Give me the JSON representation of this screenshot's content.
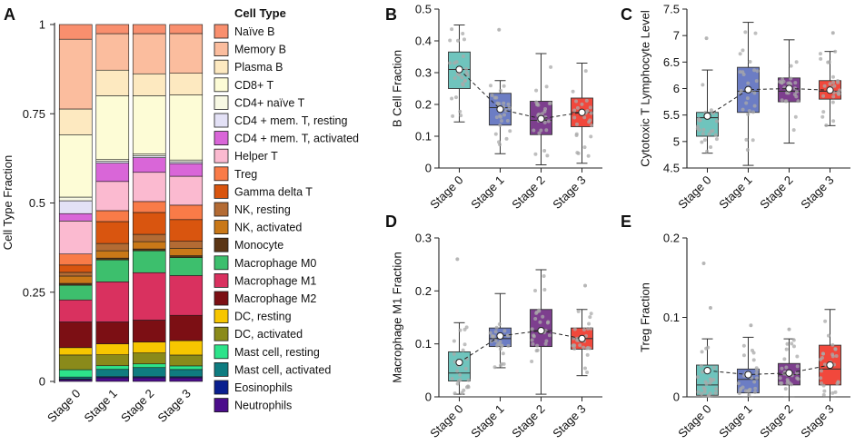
{
  "figure": {
    "panels": [
      "A",
      "B",
      "C",
      "D",
      "E"
    ]
  },
  "chart_data": [
    {
      "type": "stacked-bar",
      "panel": "A",
      "ylabel": "Cell Type Fraction",
      "ylim": [
        0,
        1
      ],
      "yticks": [
        0,
        0.25,
        0.5,
        0.75,
        1
      ],
      "ytick_labels": [
        "0",
        "0.25",
        "0.5",
        "0.75",
        "1"
      ],
      "categories": [
        "Stage 0",
        "Stage 1",
        "Stage 2",
        "Stage 3"
      ],
      "legend_title": "Cell Type",
      "series": [
        {
          "name": "Neutrophils",
          "color": "#4b0d8b",
          "values": [
            0.005,
            0.01,
            0.01,
            0.01
          ]
        },
        {
          "name": "Eosinophils",
          "color": "#0a1f8f",
          "values": [
            0.002,
            0.003,
            0.003,
            0.003
          ]
        },
        {
          "name": "Mast cell, activated",
          "color": "#0f7c80",
          "values": [
            0.005,
            0.02,
            0.025,
            0.02
          ]
        },
        {
          "name": "Mast cell, resting",
          "color": "#2de38a",
          "values": [
            0.02,
            0.01,
            0.01,
            0.01
          ]
        },
        {
          "name": "DC, activated",
          "color": "#8a8a1a",
          "values": [
            0.04,
            0.03,
            0.03,
            0.03
          ]
        },
        {
          "name": "DC, resting",
          "color": "#f7c600",
          "values": [
            0.02,
            0.03,
            0.03,
            0.04
          ]
        },
        {
          "name": "Macrophage M2",
          "color": "#7c0f14",
          "values": [
            0.07,
            0.06,
            0.06,
            0.07
          ]
        },
        {
          "name": "Macrophage M1",
          "color": "#d9315f",
          "values": [
            0.06,
            0.11,
            0.13,
            0.11
          ]
        },
        {
          "name": "Macrophage M0",
          "color": "#3dbf6d",
          "values": [
            0.04,
            0.06,
            0.06,
            0.05
          ]
        },
        {
          "name": "Monocyte",
          "color": "#5a3515",
          "values": [
            0.005,
            0.005,
            0.005,
            0.005
          ]
        },
        {
          "name": "NK, activated",
          "color": "#c97818",
          "values": [
            0.02,
            0.02,
            0.02,
            0.02
          ]
        },
        {
          "name": "NK, resting",
          "color": "#b36b34",
          "values": [
            0.01,
            0.02,
            0.02,
            0.02
          ]
        },
        {
          "name": "Gamma delta T",
          "color": "#d9550f",
          "values": [
            0.02,
            0.06,
            0.06,
            0.06
          ]
        },
        {
          "name": "Treg",
          "color": "#f97b48",
          "values": [
            0.03,
            0.03,
            0.03,
            0.04
          ]
        },
        {
          "name": "Helper T",
          "color": "#fbbad0",
          "values": [
            0.09,
            0.08,
            0.08,
            0.08
          ]
        },
        {
          "name": "CD4 + mem. T, activated",
          "color": "#d966d8",
          "values": [
            0.02,
            0.05,
            0.04,
            0.035
          ]
        },
        {
          "name": "CD4 + mem. T, resting",
          "color": "#e3e1f6",
          "values": [
            0.035,
            0.005,
            0.005,
            0.005
          ]
        },
        {
          "name": "CD4+ naïve T",
          "color": "#f8f9e4",
          "values": [
            0.01,
            0.005,
            0.005,
            0.005
          ]
        },
        {
          "name": "CD8+ T",
          "color": "#fdfcd6",
          "values": [
            0.17,
            0.175,
            0.16,
            0.18
          ]
        },
        {
          "name": "Plasma B",
          "color": "#fde9c0",
          "values": [
            0.07,
            0.07,
            0.06,
            0.06
          ]
        },
        {
          "name": "Memory B",
          "color": "#fbbd9e",
          "values": [
            0.19,
            0.1,
            0.11,
            0.11
          ]
        },
        {
          "name": "Naïve B",
          "color": "#f98f6e",
          "values": [
            0.04,
            0.025,
            0.025,
            0.025
          ]
        }
      ]
    },
    {
      "type": "box",
      "panel": "B",
      "ylabel": "B Cell Fraction",
      "ylim": [
        0,
        0.5
      ],
      "yticks": [
        0,
        0.1,
        0.2,
        0.3,
        0.4,
        0.5
      ],
      "ytick_labels": [
        "0",
        "0.1",
        "0.2",
        "0.3",
        "0.4",
        "0.5"
      ],
      "categories": [
        "Stage 0",
        "Stage 1",
        "Stage 2",
        "Stage 3"
      ],
      "colors": [
        "#6fc4bd",
        "#6c7dc4",
        "#7d3f8e",
        "#f1483c"
      ],
      "boxes": [
        {
          "q1": 0.25,
          "median": 0.31,
          "q3": 0.365,
          "whisker_low": 0.145,
          "whisker_high": 0.45,
          "mean": 0.31
        },
        {
          "q1": 0.135,
          "median": 0.19,
          "q3": 0.235,
          "whisker_low": 0.045,
          "whisker_high": 0.275,
          "mean": 0.185
        },
        {
          "q1": 0.105,
          "median": 0.15,
          "q3": 0.21,
          "whisker_low": 0.01,
          "whisker_high": 0.36,
          "mean": 0.155
        },
        {
          "q1": 0.13,
          "median": 0.175,
          "q3": 0.22,
          "whisker_low": 0.015,
          "whisker_high": 0.33,
          "mean": 0.175
        }
      ],
      "outliers": [
        [],
        [
          0.435
        ],
        [],
        []
      ]
    },
    {
      "type": "box",
      "panel": "C",
      "ylabel": "Cytotoxic T Lymphocyte Level",
      "ylim": [
        4.5,
        7.5
      ],
      "yticks": [
        4.5,
        5,
        5.5,
        6,
        6.5,
        7,
        7.5
      ],
      "ytick_labels": [
        "4.5",
        "5",
        "5.5",
        "6",
        "6.5",
        "7",
        "7.5"
      ],
      "categories": [
        "Stage 0",
        "Stage 1",
        "Stage 2",
        "Stage 3"
      ],
      "colors": [
        "#6fc4bd",
        "#6c7dc4",
        "#7d3f8e",
        "#f1483c"
      ],
      "boxes": [
        {
          "q1": 5.1,
          "median": 5.45,
          "q3": 5.55,
          "whisker_low": 4.78,
          "whisker_high": 6.35,
          "mean": 5.48
        },
        {
          "q1": 5.55,
          "median": 5.95,
          "q3": 6.4,
          "whisker_low": 4.55,
          "whisker_high": 7.25,
          "mean": 5.98
        },
        {
          "q1": 5.75,
          "median": 5.95,
          "q3": 6.2,
          "whisker_low": 4.97,
          "whisker_high": 6.92,
          "mean": 6.0
        },
        {
          "q1": 5.8,
          "median": 5.95,
          "q3": 6.15,
          "whisker_low": 5.3,
          "whisker_high": 6.7,
          "mean": 5.97
        }
      ],
      "outliers": [
        [
          6.95
        ],
        [],
        [],
        [
          7.05
        ]
      ]
    },
    {
      "type": "box",
      "panel": "D",
      "ylabel": "Macrophage M1 Fraction",
      "ylim": [
        0,
        0.3
      ],
      "yticks": [
        0,
        0.1,
        0.2,
        0.3
      ],
      "ytick_labels": [
        "0",
        "0.1",
        "0.2",
        "0.3"
      ],
      "categories": [
        "Stage 0",
        "Stage 1",
        "Stage 2",
        "Stage 3"
      ],
      "colors": [
        "#6fc4bd",
        "#6c7dc4",
        "#7d3f8e",
        "#f1483c"
      ],
      "boxes": [
        {
          "q1": 0.03,
          "median": 0.045,
          "q3": 0.085,
          "whisker_low": 0.005,
          "whisker_high": 0.14,
          "mean": 0.065
        },
        {
          "q1": 0.095,
          "median": 0.11,
          "q3": 0.13,
          "whisker_low": 0.055,
          "whisker_high": 0.195,
          "mean": 0.115
        },
        {
          "q1": 0.095,
          "median": 0.125,
          "q3": 0.165,
          "whisker_low": 0.005,
          "whisker_high": 0.24,
          "mean": 0.125
        },
        {
          "q1": 0.09,
          "median": 0.11,
          "q3": 0.13,
          "whisker_low": 0.04,
          "whisker_high": 0.165,
          "mean": 0.11
        }
      ],
      "outliers": [
        [
          0.26
        ],
        [],
        [],
        [
          0.21
        ]
      ]
    },
    {
      "type": "box",
      "panel": "E",
      "ylabel": "Treg Fraction",
      "ylim": [
        0,
        0.2
      ],
      "yticks": [
        0,
        0.1,
        0.2
      ],
      "ytick_labels": [
        "0",
        "0.1",
        "0.2"
      ],
      "categories": [
        "Stage 0",
        "Stage 1",
        "Stage 2",
        "Stage 3"
      ],
      "colors": [
        "#6fc4bd",
        "#6c7dc4",
        "#7d3f8e",
        "#f1483c"
      ],
      "boxes": [
        {
          "q1": 0.002,
          "median": 0.015,
          "q3": 0.04,
          "whisker_low": 0.0,
          "whisker_high": 0.073,
          "mean": 0.033
        },
        {
          "q1": 0.005,
          "median": 0.022,
          "q3": 0.035,
          "whisker_low": 0.0,
          "whisker_high": 0.075,
          "mean": 0.028
        },
        {
          "q1": 0.015,
          "median": 0.028,
          "q3": 0.042,
          "whisker_low": 0.0,
          "whisker_high": 0.073,
          "mean": 0.03
        },
        {
          "q1": 0.015,
          "median": 0.035,
          "q3": 0.065,
          "whisker_low": 0.0,
          "whisker_high": 0.11,
          "mean": 0.04
        }
      ],
      "outliers": [
        [
          0.168,
          0.112
        ],
        [
          0.09
        ],
        [
          0.085
        ],
        []
      ]
    }
  ]
}
